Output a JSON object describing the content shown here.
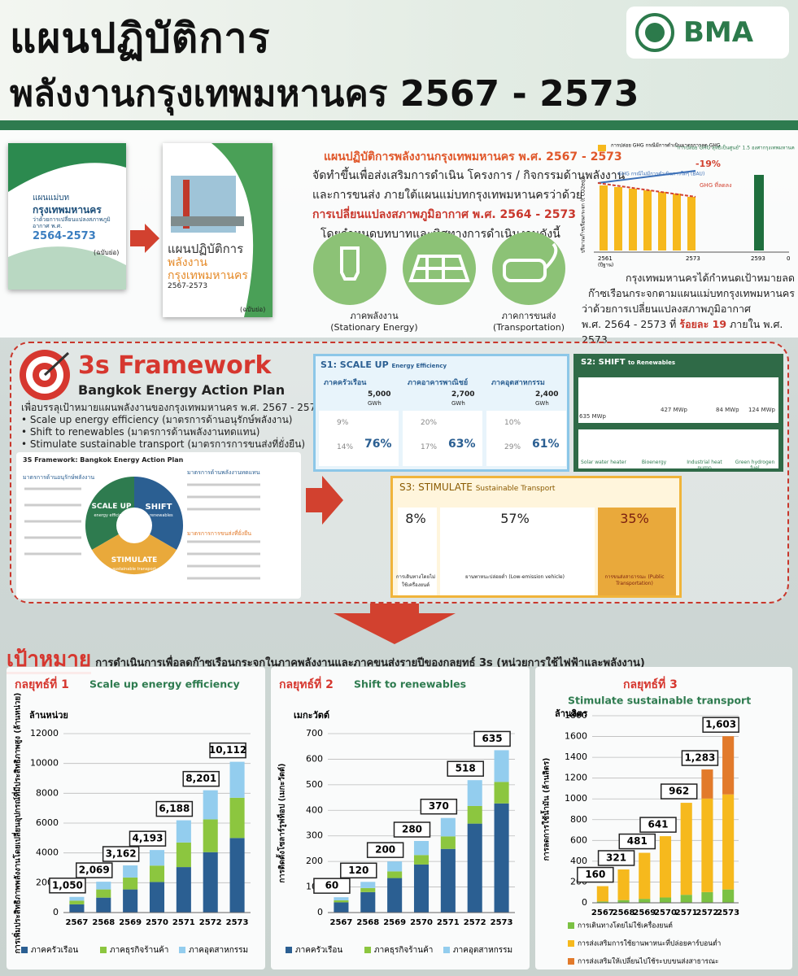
{
  "header": {
    "title_line1": "แผนปฏิบัติการ",
    "title_line2": "พลังงานกรุงเทพมหานคร 2567 - 2573",
    "logo": "BMA"
  },
  "intro": {
    "book1": {
      "lines": [
        "แผนแม่บท",
        "กรุงเทพมหานคร",
        "ว่าด้วยการเปลี่ยนแปลงสภาพภูมิอากาศ พ.ศ.",
        "2564-2573"
      ],
      "note": "(ฉบับย่อ)"
    },
    "book2": {
      "lines": [
        "แผนปฏิบัติการ",
        "พลังงาน",
        "กรุงเทพมหานคร",
        "2567-2573"
      ],
      "note": "(ฉบับย่อ)"
    },
    "heading": "แผนปฏิบัติการพลังงานกรุงเทพมหานคร พ.ศ. 2567 - 2573",
    "text_lines": [
      "จัดทำขึ้นเพื่อส่งเสริมการดำเนิน โครงการ / กิจกรรมด้านพลังงาน",
      "และการขนส่ง ภายใต้แผนแม่บทกรุงเทพมหานครว่าด้วย"
    ],
    "highlight": "การเปลี่ยนแปลงสภาพภูมิอากาศ พ.ศ. 2564 - 2573",
    "text_end": "โดยกำหนดบทบาทและทิศทางการดำเนินงานดังนี้",
    "sectors": [
      {
        "label": "ภาคพลังงาน",
        "sub": "(Stationary Energy)"
      },
      {
        "label": "ภาคการขนส่ง",
        "sub": "(Transportation)"
      }
    ],
    "ghg": {
      "legend": "การปล่อย GHG กรณีมีการดำเนินมาตรการลด GHG",
      "note": "\"การปล่อย GHG สุทธิเป็นศูนย์\" 1.5 องศากรุงเทพมหานคร",
      "bau": "GHG กรณีไม่มีการดำเนินการใดๆ (BAU)",
      "reduction": "-19%",
      "reduced": "GHG ที่ลดลง",
      "ylabel": "ปริมาณก๊าซเรือนกระจก (t CO2eq)",
      "years": [
        "2561",
        "2573",
        "2593",
        "0"
      ],
      "base": "(ปีฐาน)"
    },
    "target_lines": [
      "กรุงเทพมหานครได้กำหนดเป้าหมายลด",
      "ก๊าซเรือนกระจกตามแผนแม่บทกรุงเทพมหานคร",
      "ว่าด้วยการเปลี่ยนแปลงสภาพภูมิอากาศ"
    ],
    "target_last": "พ.ศ. 2564 - 2573 ที่",
    "target_bold": "ร้อยละ 19",
    "target_end": "ภายใน พ.ศ. 2573"
  },
  "framework": {
    "title": "3s Framework",
    "subtitle": "Bangkok Energy Action Plan",
    "intro": "เพื่อบรรลุเป้าหมายแผนพลังงานของกรุงเทพมหานคร พ.ศ. 2567 - 2573",
    "bullets": [
      "Scale up energy efficiency (มาตรการด้านอนุรักษ์พลังงาน)",
      "Shift to renewables (มาตรการด้านพลังงานทดแทน)",
      "Stimulate sustainable transport (มาตรการการขนส่งที่ยั่งยืน)"
    ],
    "diagram": {
      "title": "3S Framework: Bangkok Energy Action Plan",
      "left": "มาตรการด้านอนุรักษ์พลังงาน",
      "right": "มาตรการด้านพลังงานทดแทน",
      "bottom": "มาตรการการขนส่งที่ยั่งยืน",
      "segments": [
        {
          "name": "SCALE UP",
          "sub": "energy efficiency"
        },
        {
          "name": "SHIFT",
          "sub": "to renewables"
        },
        {
          "name": "STIMULATE",
          "sub": "sustainable transport"
        }
      ]
    },
    "s1": {
      "title": "S1: SCALE UP",
      "title_small": "Energy Efficiency",
      "unit": "GWh",
      "sectors": [
        {
          "name": "ภาคครัวเรือน",
          "target": "5,000",
          "minor": [
            "9%",
            "14%"
          ],
          "percent": "76%"
        },
        {
          "name": "ภาคอาคารพาณิชย์",
          "target": "2,700",
          "minor": [
            "20%",
            "17%"
          ],
          "percent": "63%"
        },
        {
          "name": "ภาคอุตสาหกรรม",
          "target": "2,400",
          "minor": [
            "10%",
            "29%"
          ],
          "percent": "61%"
        }
      ]
    },
    "s2": {
      "title": "S2: SHIFT",
      "title_small": "to Renewables",
      "capacity": [
        "635 MWp",
        "427 MWp",
        "84 MWp",
        "124 MWp"
      ],
      "tech": [
        "Solar water heater",
        "Bioenergy",
        "Industrial heat pump",
        "Green hydrogen fuel"
      ]
    },
    "s3": {
      "title": "S3: STIMULATE",
      "title_small": "Sustainable Transport",
      "items": [
        {
          "percent": "8%",
          "label": "การเดินทางโดยไม่ใช้เครื่องยนต์"
        },
        {
          "percent": "57%",
          "label": "ยานพาหนะปล่อยต่ำ (Low-emission vehicle)"
        },
        {
          "percent": "35%",
          "label": "การขนส่งสาธารณะ (Public Transportation)"
        }
      ]
    }
  },
  "goal": {
    "word": "เป้าหมาย",
    "text": "การดำเนินการเพื่อลดก๊าซเรือนกระจกในภาคพลังงานและภาคขนส่งรายปีของกลยุทธ์ 3s (หน่วยการใช้ไฟฟ้าและพลังงาน)"
  },
  "chart_data": [
    {
      "type": "bar",
      "stacked": true,
      "strategy": "กลยุทธ์ที่ 1",
      "title": "Scale up energy efficiency",
      "unit": "ล้านหน่วย",
      "ylabel": "การเพิ่มประสิทธิภาพพลังงานโดยเปลี่ยนอุปกรณ์ที่มีประสิทธิภาพสูง (ล้านหน่วย)",
      "categories": [
        "2567",
        "2568",
        "2569",
        "2570",
        "2571",
        "2572",
        "2573"
      ],
      "series": [
        {
          "name": "ภาคครัวเรือน",
          "color": "#2b5f92",
          "values": [
            550,
            1000,
            1550,
            2050,
            3050,
            4050,
            5000
          ]
        },
        {
          "name": "ภาคธุรกิจร้านค้า",
          "color": "#8cc63f",
          "values": [
            250,
            550,
            800,
            1100,
            1650,
            2200,
            2700
          ]
        },
        {
          "name": "ภาคอุตสาหกรรม",
          "color": "#93cdee",
          "values": [
            250,
            519,
            812,
            1043,
            1488,
            1951,
            2412
          ]
        }
      ],
      "totals": [
        1050,
        2069,
        3162,
        4193,
        6188,
        8201,
        10112
      ],
      "total_labels": [
        "1,050",
        "2,069",
        "3,162",
        "4,193",
        "6,188",
        "8,201",
        "10,112"
      ],
      "ylim": [
        0,
        12000
      ],
      "yticks": [
        0,
        2000,
        4000,
        6000,
        8000,
        10000,
        12000
      ],
      "grid": true,
      "legend": "bottom"
    },
    {
      "type": "bar",
      "stacked": true,
      "strategy": "กลยุทธ์ที่ 2",
      "title": "Shift to renewables",
      "unit": "เมกะวัตต์",
      "ylabel": "การติดตั้งโซลาร์รูฟท็อป (เมกะวัตต์)",
      "categories": [
        "2567",
        "2568",
        "2569",
        "2570",
        "2571",
        "2572",
        "2573"
      ],
      "series": [
        {
          "name": "ภาคครัวเรือน",
          "color": "#2b5f92",
          "values": [
            40,
            80,
            135,
            188,
            249,
            348,
            427
          ]
        },
        {
          "name": "ภาคธุรกิจร้านค้า",
          "color": "#8cc63f",
          "values": [
            8,
            16,
            26,
            37,
            49,
            69,
            84
          ]
        },
        {
          "name": "ภาคอุตสาหกรรม",
          "color": "#93cdee",
          "values": [
            12,
            24,
            39,
            55,
            72,
            101,
            124
          ]
        }
      ],
      "totals": [
        60,
        120,
        200,
        280,
        370,
        518,
        635
      ],
      "ylim": [
        0,
        700
      ],
      "yticks": [
        0,
        100,
        200,
        300,
        400,
        500,
        600,
        700
      ],
      "grid": true,
      "legend": "bottom"
    },
    {
      "type": "bar",
      "stacked": true,
      "strategy": "กลยุทธ์ที่ 3",
      "title": "Stimulate sustainable transport",
      "unit": "ล้านลิตร",
      "ylabel": "การลดการใช้น้ำมัน (ล้านลิตร)",
      "categories": [
        "2567",
        "2568",
        "2569",
        "2570",
        "2571",
        "2572",
        "2573"
      ],
      "series": [
        {
          "name": "การเดินทางโดยไม่ใช้เครื่องยนต์",
          "color": "#7bc143",
          "values": [
            13,
            26,
            38,
            51,
            77,
            103,
            128
          ]
        },
        {
          "name": "การส่งเสริมการใช้ยานพาหนะที่ปล่อยคาร์บอนต่ำ",
          "color": "#f6b91d",
          "values": [
            147,
            295,
            443,
            590,
            885,
            900,
            915
          ]
        },
        {
          "name": "การส่งเสริมให้เปลี่ยนไปใช้ระบบขนส่งสาธารณะ",
          "color": "#e27a2b",
          "values": [
            0,
            0,
            0,
            0,
            0,
            280,
            560
          ]
        }
      ],
      "series_order": "bottom-up",
      "totals": [
        160,
        321,
        481,
        641,
        962,
        1283,
        1603
      ],
      "total_labels": [
        "160",
        "321",
        "481",
        "641",
        "962",
        "1,283",
        "1,603"
      ],
      "ylim": [
        0,
        1800
      ],
      "yticks": [
        0,
        200,
        400,
        600,
        800,
        1000,
        1200,
        1400,
        1600,
        1800
      ],
      "grid": true,
      "legend": "bottom"
    }
  ]
}
